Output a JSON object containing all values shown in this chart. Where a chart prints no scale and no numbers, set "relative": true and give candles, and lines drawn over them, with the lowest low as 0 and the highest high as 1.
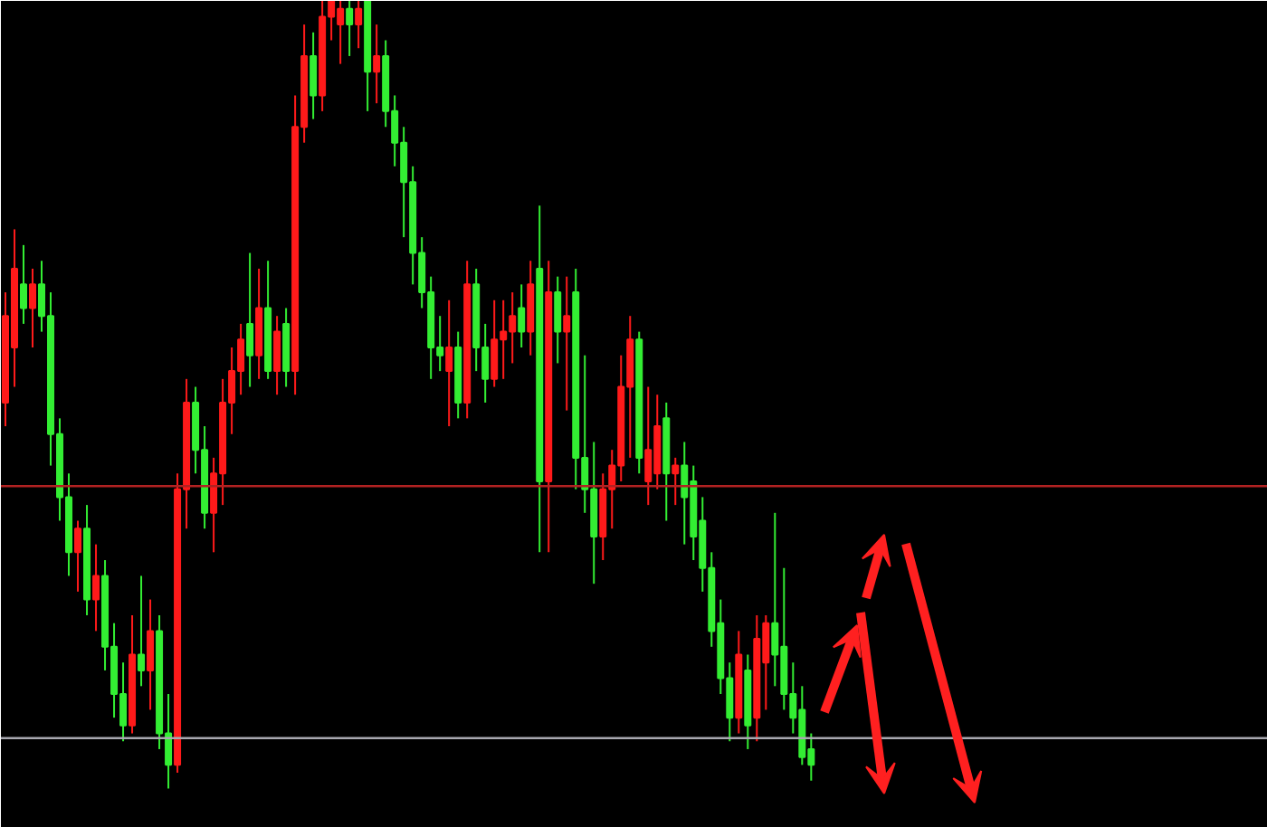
{
  "chart_data": {
    "type": "candlestick",
    "relative": true,
    "grid": false,
    "categories": [
      null,
      null,
      null,
      null,
      null,
      null,
      null,
      null,
      null,
      null,
      null,
      null,
      null,
      null,
      null,
      null,
      null,
      null,
      null,
      null,
      null,
      null,
      null,
      null,
      null,
      null,
      null,
      null,
      null,
      null,
      null,
      null,
      null,
      null,
      null,
      null,
      null,
      null,
      null,
      null,
      null,
      null,
      null,
      null,
      null,
      null,
      null,
      null,
      null,
      null,
      null,
      null,
      null,
      null,
      null,
      null,
      null,
      null,
      null,
      null,
      null,
      null,
      null,
      null,
      null,
      null,
      null,
      null,
      null,
      null,
      null,
      null,
      null,
      null,
      null,
      null,
      null,
      null,
      null,
      null,
      null,
      null,
      null,
      null,
      null,
      null,
      null,
      null,
      null,
      null
    ],
    "ohlc": [
      [
        0.49,
        0.63,
        0.46,
        0.6
      ],
      [
        0.56,
        0.71,
        0.51,
        0.66
      ],
      [
        0.64,
        0.69,
        0.59,
        0.61
      ],
      [
        0.61,
        0.66,
        0.56,
        0.64
      ],
      [
        0.64,
        0.67,
        0.58,
        0.6
      ],
      [
        0.6,
        0.63,
        0.41,
        0.45
      ],
      [
        0.45,
        0.47,
        0.34,
        0.37
      ],
      [
        0.37,
        0.4,
        0.27,
        0.3
      ],
      [
        0.3,
        0.34,
        0.25,
        0.33
      ],
      [
        0.33,
        0.36,
        0.22,
        0.24
      ],
      [
        0.24,
        0.31,
        0.2,
        0.27
      ],
      [
        0.27,
        0.29,
        0.15,
        0.18
      ],
      [
        0.18,
        0.21,
        0.09,
        0.12
      ],
      [
        0.12,
        0.16,
        0.06,
        0.08
      ],
      [
        0.08,
        0.22,
        0.07,
        0.17
      ],
      [
        0.17,
        0.27,
        0.13,
        0.15
      ],
      [
        0.15,
        0.24,
        0.1,
        0.2
      ],
      [
        0.2,
        0.22,
        0.05,
        0.07
      ],
      [
        0.07,
        0.12,
        0.0,
        0.03
      ],
      [
        0.03,
        0.4,
        0.02,
        0.38
      ],
      [
        0.38,
        0.52,
        0.33,
        0.49
      ],
      [
        0.49,
        0.51,
        0.4,
        0.43
      ],
      [
        0.43,
        0.46,
        0.33,
        0.35
      ],
      [
        0.35,
        0.42,
        0.3,
        0.4
      ],
      [
        0.4,
        0.52,
        0.36,
        0.49
      ],
      [
        0.49,
        0.56,
        0.45,
        0.53
      ],
      [
        0.53,
        0.59,
        0.5,
        0.57
      ],
      [
        0.59,
        0.68,
        0.51,
        0.55
      ],
      [
        0.55,
        0.66,
        0.52,
        0.61
      ],
      [
        0.61,
        0.67,
        0.52,
        0.53
      ],
      [
        0.53,
        0.6,
        0.5,
        0.58
      ],
      [
        0.59,
        0.61,
        0.51,
        0.53
      ],
      [
        0.53,
        0.88,
        0.5,
        0.84
      ],
      [
        0.84,
        0.97,
        0.82,
        0.93
      ],
      [
        0.93,
        0.96,
        0.85,
        0.88
      ],
      [
        0.88,
        1.0,
        0.86,
        0.98
      ],
      [
        0.98,
        1.0,
        0.95,
        1.0
      ],
      [
        0.97,
        1.0,
        0.92,
        0.99
      ],
      [
        0.99,
        1.0,
        0.93,
        0.97
      ],
      [
        0.97,
        1.0,
        0.94,
        0.99
      ],
      [
        1.0,
        1.0,
        0.86,
        0.91
      ],
      [
        0.91,
        0.97,
        0.87,
        0.93
      ],
      [
        0.93,
        0.95,
        0.84,
        0.86
      ],
      [
        0.86,
        0.88,
        0.79,
        0.82
      ],
      [
        0.82,
        0.84,
        0.7,
        0.77
      ],
      [
        0.77,
        0.79,
        0.64,
        0.68
      ],
      [
        0.68,
        0.7,
        0.61,
        0.63
      ],
      [
        0.63,
        0.65,
        0.52,
        0.56
      ],
      [
        0.56,
        0.6,
        0.53,
        0.55
      ],
      [
        0.53,
        0.62,
        0.46,
        0.56
      ],
      [
        0.56,
        0.58,
        0.47,
        0.49
      ],
      [
        0.49,
        0.67,
        0.47,
        0.64
      ],
      [
        0.64,
        0.66,
        0.53,
        0.56
      ],
      [
        0.56,
        0.59,
        0.49,
        0.52
      ],
      [
        0.52,
        0.62,
        0.51,
        0.57
      ],
      [
        0.57,
        0.62,
        0.52,
        0.58
      ],
      [
        0.58,
        0.63,
        0.54,
        0.6
      ],
      [
        0.61,
        0.64,
        0.56,
        0.58
      ],
      [
        0.58,
        0.67,
        0.55,
        0.64
      ],
      [
        0.66,
        0.74,
        0.3,
        0.39
      ],
      [
        0.39,
        0.67,
        0.3,
        0.63
      ],
      [
        0.63,
        0.65,
        0.54,
        0.58
      ],
      [
        0.58,
        0.65,
        0.48,
        0.6
      ],
      [
        0.63,
        0.66,
        0.38,
        0.42
      ],
      [
        0.42,
        0.55,
        0.35,
        0.38
      ],
      [
        0.38,
        0.44,
        0.26,
        0.32
      ],
      [
        0.32,
        0.4,
        0.29,
        0.38
      ],
      [
        0.38,
        0.43,
        0.33,
        0.41
      ],
      [
        0.41,
        0.55,
        0.39,
        0.51
      ],
      [
        0.51,
        0.6,
        0.42,
        0.57
      ],
      [
        0.57,
        0.58,
        0.4,
        0.42
      ],
      [
        0.39,
        0.51,
        0.36,
        0.43
      ],
      [
        0.4,
        0.5,
        0.38,
        0.46
      ],
      [
        0.47,
        0.49,
        0.34,
        0.4
      ],
      [
        0.4,
        0.42,
        0.36,
        0.41
      ],
      [
        0.41,
        0.44,
        0.31,
        0.37
      ],
      [
        0.39,
        0.41,
        0.29,
        0.32
      ],
      [
        0.34,
        0.37,
        0.25,
        0.28
      ],
      [
        0.28,
        0.3,
        0.18,
        0.2
      ],
      [
        0.21,
        0.24,
        0.12,
        0.14
      ],
      [
        0.14,
        0.16,
        0.06,
        0.09
      ],
      [
        0.09,
        0.2,
        0.07,
        0.17
      ],
      [
        0.15,
        0.17,
        0.05,
        0.08
      ],
      [
        0.09,
        0.22,
        0.06,
        0.19
      ],
      [
        0.16,
        0.22,
        0.1,
        0.21
      ],
      [
        0.21,
        0.35,
        0.13,
        0.17
      ],
      [
        0.18,
        0.28,
        0.1,
        0.12
      ],
      [
        0.12,
        0.16,
        0.07,
        0.09
      ],
      [
        0.1,
        0.13,
        0.03,
        0.04
      ],
      [
        0.05,
        0.07,
        0.01,
        0.03
      ]
    ],
    "colors": [
      "#ff1a1a",
      "#ff1a1a",
      "#33ee33",
      "#ff1a1a",
      "#33ee33",
      "#33ee33",
      "#33ee33",
      "#33ee33",
      "#ff1a1a",
      "#33ee33",
      "#ff1a1a",
      "#33ee33",
      "#33ee33",
      "#33ee33",
      "#ff1a1a",
      "#33ee33",
      "#ff1a1a",
      "#33ee33",
      "#33ee33",
      "#ff1a1a",
      "#ff1a1a",
      "#33ee33",
      "#33ee33",
      "#ff1a1a",
      "#ff1a1a",
      "#ff1a1a",
      "#ff1a1a",
      "#33ee33",
      "#ff1a1a",
      "#33ee33",
      "#ff1a1a",
      "#33ee33",
      "#ff1a1a",
      "#ff1a1a",
      "#33ee33",
      "#ff1a1a",
      "#ff1a1a",
      "#ff1a1a",
      "#33ee33",
      "#ff1a1a",
      "#33ee33",
      "#ff1a1a",
      "#33ee33",
      "#33ee33",
      "#33ee33",
      "#33ee33",
      "#33ee33",
      "#33ee33",
      "#33ee33",
      "#ff1a1a",
      "#33ee33",
      "#ff1a1a",
      "#33ee33",
      "#33ee33",
      "#ff1a1a",
      "#ff1a1a",
      "#ff1a1a",
      "#33ee33",
      "#ff1a1a",
      "#33ee33",
      "#ff1a1a",
      "#33ee33",
      "#ff1a1a",
      "#33ee33",
      "#33ee33",
      "#33ee33",
      "#ff1a1a",
      "#ff1a1a",
      "#ff1a1a",
      "#ff1a1a",
      "#33ee33",
      "#ff1a1a",
      "#ff1a1a",
      "#33ee33",
      "#ff1a1a",
      "#33ee33",
      "#33ee33",
      "#33ee33",
      "#33ee33",
      "#33ee33",
      "#33ee33",
      "#ff1a1a",
      "#33ee33",
      "#ff1a1a",
      "#ff1a1a",
      "#33ee33",
      "#33ee33",
      "#33ee33",
      "#33ee33",
      "#33ee33"
    ],
    "ref_lines": [
      {
        "axis": "y",
        "value": 0.384,
        "color": "#b22222"
      },
      {
        "axis": "y",
        "value": 0.064,
        "color": "#a8a8b0"
      }
    ]
  }
}
